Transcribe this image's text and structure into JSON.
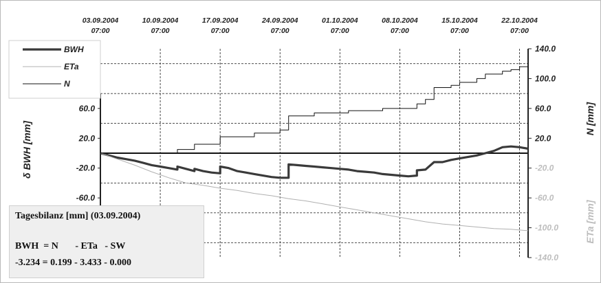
{
  "chart_data": {
    "type": "line",
    "x_ticks": [
      "03.09.2004 07:00",
      "10.09.2004 07:00",
      "17.09.2004 07:00",
      "24.09.2004 07:00",
      "01.10.2004 07:00",
      "08.10.2004 07:00",
      "15.10.2004 07:00",
      "22.10.2004 07:00"
    ],
    "x_tick_lines": [
      [
        "03.09.2004",
        "07:00"
      ],
      [
        "10.09.2004",
        "07:00"
      ],
      [
        "17.09.2004",
        "07:00"
      ],
      [
        "24.09.2004",
        "07:00"
      ],
      [
        "01.10.2004",
        "07:00"
      ],
      [
        "08.10.2004",
        "07:00"
      ],
      [
        "15.10.2004",
        "07:00"
      ],
      [
        "22.10.2004",
        "07:00"
      ]
    ],
    "xlim": [
      "03.09.2004 07:00",
      "23.10.2004 07:00"
    ],
    "y_left": {
      "label": "δ BWH [mm]",
      "ticks": [
        "60.0",
        "20.0",
        "-20.0",
        "-60.0"
      ],
      "range": [
        -140,
        140
      ]
    },
    "y_right_N": {
      "label": "N [mm]",
      "ticks": [
        "140.0",
        "100.0",
        "60.0",
        "20.0"
      ],
      "range": [
        -140,
        140
      ]
    },
    "y_right_ETa": {
      "label": "ETa [mm]",
      "ticks": [
        "-20.0",
        "-60.0",
        "-100.0",
        "-140.0"
      ],
      "range": [
        -140,
        140
      ]
    },
    "grid": true,
    "legend_position": "top-left",
    "series": [
      {
        "name": "BWH",
        "color": "#3a3a3a",
        "width": 3.2,
        "points": [
          [
            "03.09.2004",
            0
          ],
          [
            "04.09.2004",
            -3
          ],
          [
            "05.09.2004",
            -6
          ],
          [
            "06.09.2004",
            -8
          ],
          [
            "07.09.2004",
            -10
          ],
          [
            "08.09.2004",
            -13
          ],
          [
            "09.09.2004",
            -16
          ],
          [
            "10.09.2004",
            -18
          ],
          [
            "11.09.2004",
            -20
          ],
          [
            "12.09.2004",
            -22
          ],
          [
            "12.09.2004",
            -18
          ],
          [
            "13.09.2004",
            -21
          ],
          [
            "14.09.2004",
            -24
          ],
          [
            "14.09.2004",
            -21
          ],
          [
            "15.09.2004",
            -24
          ],
          [
            "16.09.2004",
            -26
          ],
          [
            "17.09.2004",
            -27
          ],
          [
            "17.09.2004",
            -18
          ],
          [
            "18.09.2004",
            -20
          ],
          [
            "19.09.2004",
            -24
          ],
          [
            "20.09.2004",
            -26
          ],
          [
            "21.09.2004",
            -28
          ],
          [
            "22.09.2004",
            -30
          ],
          [
            "23.09.2004",
            -32
          ],
          [
            "24.09.2004",
            -33
          ],
          [
            "25.09.2004",
            -33
          ],
          [
            "25.09.2004",
            -15
          ],
          [
            "26.09.2004",
            -16
          ],
          [
            "27.09.2004",
            -17
          ],
          [
            "28.09.2004",
            -18
          ],
          [
            "29.09.2004",
            -19
          ],
          [
            "30.09.2004",
            -20
          ],
          [
            "01.10.2004",
            -21
          ],
          [
            "02.10.2004",
            -22
          ],
          [
            "03.10.2004",
            -24
          ],
          [
            "04.10.2004",
            -25
          ],
          [
            "05.10.2004",
            -26
          ],
          [
            "06.10.2004",
            -28
          ],
          [
            "07.10.2004",
            -29
          ],
          [
            "08.10.2004",
            -30
          ],
          [
            "09.10.2004",
            -31
          ],
          [
            "10.10.2004",
            -30
          ],
          [
            "10.10.2004",
            -23
          ],
          [
            "11.10.2004",
            -22
          ],
          [
            "12.10.2004",
            -12
          ],
          [
            "13.10.2004",
            -12
          ],
          [
            "14.10.2004",
            -9
          ],
          [
            "15.10.2004",
            -7
          ],
          [
            "16.10.2004",
            -5
          ],
          [
            "17.10.2004",
            -3
          ],
          [
            "18.10.2004",
            0
          ],
          [
            "19.10.2004",
            3
          ],
          [
            "20.10.2004",
            8
          ],
          [
            "21.10.2004",
            9
          ],
          [
            "22.10.2004",
            8
          ],
          [
            "23.10.2004",
            6
          ]
        ]
      },
      {
        "name": "ETa",
        "color": "#b0b0b0",
        "width": 1,
        "points": [
          [
            "03.09.2004",
            0
          ],
          [
            "05.09.2004",
            -8
          ],
          [
            "07.09.2004",
            -16
          ],
          [
            "09.09.2004",
            -25
          ],
          [
            "11.09.2004",
            -33
          ],
          [
            "13.09.2004",
            -40
          ],
          [
            "15.09.2004",
            -43
          ],
          [
            "17.09.2004",
            -47
          ],
          [
            "19.09.2004",
            -50
          ],
          [
            "21.09.2004",
            -54
          ],
          [
            "23.09.2004",
            -57
          ],
          [
            "25.09.2004",
            -61
          ],
          [
            "27.09.2004",
            -64
          ],
          [
            "29.09.2004",
            -68
          ],
          [
            "01.10.2004",
            -72
          ],
          [
            "03.10.2004",
            -76
          ],
          [
            "05.10.2004",
            -80
          ],
          [
            "07.10.2004",
            -84
          ],
          [
            "09.10.2004",
            -88
          ],
          [
            "11.10.2004",
            -92
          ],
          [
            "13.10.2004",
            -95
          ],
          [
            "15.10.2004",
            -97
          ],
          [
            "17.10.2004",
            -99
          ],
          [
            "19.10.2004",
            -101
          ],
          [
            "21.10.2004",
            -102
          ],
          [
            "23.10.2004",
            -104
          ]
        ]
      },
      {
        "name": "N",
        "color": "#111111",
        "width": 1,
        "points": [
          [
            "03.09.2004",
            0
          ],
          [
            "12.09.2004",
            0
          ],
          [
            "12.09.2004",
            5
          ],
          [
            "14.09.2004",
            5
          ],
          [
            "14.09.2004",
            12
          ],
          [
            "17.09.2004",
            12
          ],
          [
            "17.09.2004",
            22
          ],
          [
            "21.09.2004",
            22
          ],
          [
            "21.09.2004",
            27
          ],
          [
            "24.09.2004",
            27
          ],
          [
            "24.09.2004",
            31
          ],
          [
            "25.09.2004",
            31
          ],
          [
            "25.09.2004",
            50
          ],
          [
            "28.09.2004",
            50
          ],
          [
            "28.09.2004",
            54
          ],
          [
            "02.10.2004",
            54
          ],
          [
            "02.10.2004",
            57
          ],
          [
            "06.10.2004",
            57
          ],
          [
            "06.10.2004",
            60
          ],
          [
            "10.10.2004",
            60
          ],
          [
            "10.10.2004",
            66
          ],
          [
            "11.10.2004",
            66
          ],
          [
            "11.10.2004",
            72
          ],
          [
            "12.10.2004",
            72
          ],
          [
            "12.10.2004",
            88
          ],
          [
            "14.10.2004",
            88
          ],
          [
            "14.10.2004",
            91
          ],
          [
            "15.10.2004",
            91
          ],
          [
            "15.10.2004",
            95
          ],
          [
            "17.10.2004",
            95
          ],
          [
            "17.10.2004",
            100
          ],
          [
            "18.10.2004",
            100
          ],
          [
            "18.10.2004",
            106
          ],
          [
            "20.10.2004",
            106
          ],
          [
            "20.10.2004",
            110
          ],
          [
            "21.10.2004",
            110
          ],
          [
            "21.10.2004",
            112
          ],
          [
            "22.10.2004",
            112
          ],
          [
            "22.10.2004",
            116
          ],
          [
            "23.10.2004",
            116
          ]
        ]
      }
    ]
  },
  "legend": [
    {
      "label": "BWH",
      "color": "#3a3a3a",
      "width": 3.2
    },
    {
      "label": "ETa",
      "color": "#b0b0b0",
      "width": 1
    },
    {
      "label": "N",
      "color": "#111111",
      "width": 1
    }
  ],
  "bilanz": {
    "title": "Tagesbilanz [mm] (03.09.2004)",
    "row1": "BWH  = N       - ETa   - SW",
    "row2": "-3.234 = 0.199 - 3.433 - 0.000"
  },
  "colors": {
    "eta_axis": "#bdbdbd",
    "grid": "#333333",
    "zero_line": "#111111"
  }
}
